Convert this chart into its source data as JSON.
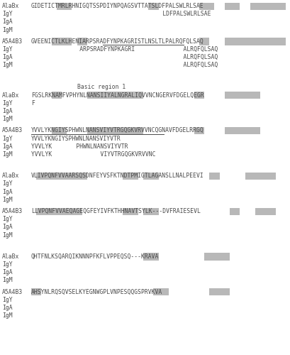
{
  "bg_color": "#ffffff",
  "text_color": "#4a4a4a",
  "highlight_color": "#b8b8b8",
  "font_family": "DejaVu Sans Mono",
  "label_fontsize": 5.8,
  "seq_fontsize": 5.8,
  "figsize": [
    4.09,
    5.0
  ],
  "dpi": 100,
  "blocks": [
    {
      "label_lines": [
        "AlaBx",
        "IgY",
        "IgA",
        "IgM"
      ],
      "seq_lines": [
        "GIDETICTMRLRHNIGQTSSPDIYNPQAGSVTTATSLDFPALSWLRLSAE",
        "                                      LDFPALSWLRLSAE",
        "",
        ""
      ],
      "highlights": [
        {
          "start": 5,
          "end": 7
        },
        {
          "start": 23,
          "end": 24
        },
        {
          "start": 33,
          "end": 35
        },
        {
          "start": 38,
          "end": 40
        },
        {
          "start": 43,
          "end": 49
        }
      ],
      "underlines": []
    },
    {
      "label_lines": [
        "A5A4B3",
        "IgY",
        "IgA",
        "IgM"
      ],
      "seq_lines": [
        "GVEENICTLKLHENIARPSRADFYNPKAGRISTLNSLTLPALRQFQLSAQ",
        "              ARPSRADFYNPKAGRI              ALRQFQLSAQ",
        "                                            ALRQFQLSAQ",
        "                                            ALRQFQLSAQ"
      ],
      "highlights": [
        {
          "start": 4,
          "end": 7
        },
        {
          "start": 9,
          "end": 10
        },
        {
          "start": 33,
          "end": 34
        },
        {
          "start": 38,
          "end": 40
        },
        {
          "start": 41,
          "end": 49
        }
      ],
      "underlines": [
        {
          "start": 14,
          "end": 30
        }
      ]
    },
    {
      "annotation": "Basic region 1",
      "annotation_indent": 9,
      "label_lines": [
        "AlaBx",
        "IgY",
        "IgA",
        "IgM"
      ],
      "seq_lines": [
        "FGSLRKNAMFVPHYNLNANSIIYALNGRALIQVVNCNGERVFDGELQEGR",
        "F",
        "",
        ""
      ],
      "highlights": [
        {
          "start": 4,
          "end": 5
        },
        {
          "start": 11,
          "end": 21
        },
        {
          "start": 32,
          "end": 33
        },
        {
          "start": 38,
          "end": 44
        }
      ],
      "underlines": []
    },
    {
      "label_lines": [
        "A5A4B3",
        "IgY",
        "IgA",
        "IgM"
      ],
      "seq_lines": [
        "YVVLYKNGIYSPHWNLNANSVIYVTRGQGKVRVVNCQGNAVFDGELRRGQ",
        "YVVLYKNGIYSPHWNLNANSVIYVTR",
        "YVVLYK       PHWNLNANSVIYVTR",
        "YVVLYK              VIYVTRGQGKVRVVNC"
      ],
      "highlights": [
        {
          "start": 4,
          "end": 6
        },
        {
          "start": 11,
          "end": 21
        },
        {
          "start": 32,
          "end": 33
        },
        {
          "start": 38,
          "end": 44
        }
      ],
      "underlines": [
        {
          "start": 0,
          "end": 26
        }
      ]
    },
    {
      "label_lines": [
        "AlaBx",
        "IgY",
        "IgA",
        "IgM"
      ],
      "seq_lines": [
        "VLIVPQNFVVAARSQSDNFEYVSFKTNDTPMIGTLAGANSLLNALPEEVI",
        "",
        "",
        ""
      ],
      "highlights": [
        {
          "start": 1,
          "end": 10
        },
        {
          "start": 18,
          "end": 20
        },
        {
          "start": 22,
          "end": 24
        },
        {
          "start": 35,
          "end": 36
        },
        {
          "start": 42,
          "end": 43
        },
        {
          "start": 44,
          "end": 47
        }
      ],
      "underlines": []
    },
    {
      "label_lines": [
        "A5A4B3",
        "IgY",
        "IgA",
        "IgM"
      ],
      "seq_lines": [
        "LLVPQNFVVAEQAGEQGFEYIVFKTHHNAVTSYLK---DVFRAIESEVL",
        "",
        "",
        ""
      ],
      "highlights": [
        {
          "start": 1,
          "end": 9
        },
        {
          "start": 18,
          "end": 20
        },
        {
          "start": 22,
          "end": 24
        },
        {
          "start": 39,
          "end": 40
        },
        {
          "start": 44,
          "end": 47
        }
      ],
      "underlines": []
    },
    {
      "label_lines": [
        "AlaBx",
        "IgY",
        "IgA",
        "IgM"
      ],
      "seq_lines": [
        "QHTFNLKSQARQIKNNNPFKFLVPPEQSQ---KRAVA",
        "",
        "",
        ""
      ],
      "highlights": [
        {
          "start": 22,
          "end": 24
        },
        {
          "start": 34,
          "end": 38
        }
      ],
      "underlines": []
    },
    {
      "label_lines": [
        "A5A4B3",
        "IgY",
        "IgA",
        "IgM"
      ],
      "seq_lines": [
        "AHSYNLRQSQVSELKYEGNWGPLVNPESQQGSPRVKVA",
        "",
        "",
        ""
      ],
      "highlights": [
        {
          "start": 0,
          "end": 1
        },
        {
          "start": 24,
          "end": 26
        },
        {
          "start": 35,
          "end": 38
        }
      ],
      "underlines": []
    }
  ]
}
